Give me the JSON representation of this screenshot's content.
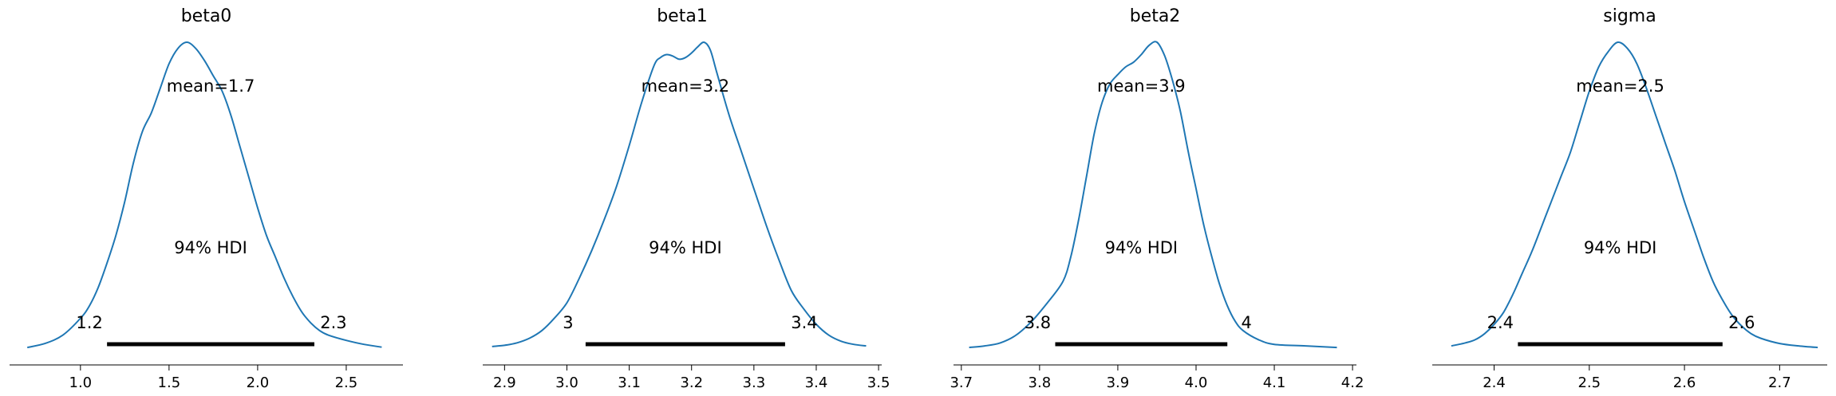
{
  "chart_data": [
    {
      "type": "area",
      "title": "beta0",
      "xlim": [
        0.6,
        2.82
      ],
      "xticks": [
        1.0,
        1.5,
        2.0,
        2.5
      ],
      "xtick_labels": [
        "1.0",
        "1.5",
        "2.0",
        "2.5"
      ],
      "density": {
        "x": [
          0.7,
          0.8,
          0.9,
          1.0,
          1.05,
          1.1,
          1.15,
          1.2,
          1.25,
          1.3,
          1.35,
          1.4,
          1.45,
          1.5,
          1.55,
          1.6,
          1.65,
          1.7,
          1.75,
          1.8,
          1.85,
          1.9,
          1.95,
          2.0,
          2.05,
          2.1,
          2.15,
          2.2,
          2.25,
          2.3,
          2.35,
          2.4,
          2.5,
          2.6,
          2.7
        ],
        "y": [
          0.005,
          0.018,
          0.045,
          0.1,
          0.14,
          0.2,
          0.28,
          0.37,
          0.48,
          0.61,
          0.71,
          0.77,
          0.85,
          0.93,
          0.98,
          1.0,
          0.98,
          0.94,
          0.89,
          0.84,
          0.76,
          0.66,
          0.56,
          0.46,
          0.37,
          0.3,
          0.23,
          0.17,
          0.12,
          0.085,
          0.06,
          0.045,
          0.028,
          0.015,
          0.006
        ]
      },
      "mean_label": "mean=1.7",
      "hdi_label": "94% HDI",
      "hdi": [
        1.15,
        2.32
      ],
      "hdi_low_label": "1.2",
      "hdi_high_label": "2.3"
    },
    {
      "type": "area",
      "title": "beta1",
      "xlim": [
        2.865,
        3.505
      ],
      "xticks": [
        2.9,
        3.0,
        3.1,
        3.2,
        3.3,
        3.4,
        3.5
      ],
      "xtick_labels": [
        "2.9",
        "3.0",
        "3.1",
        "3.2",
        "3.3",
        "3.4",
        "3.5"
      ],
      "density": {
        "x": [
          2.88,
          2.9,
          2.92,
          2.94,
          2.96,
          2.98,
          3.0,
          3.02,
          3.04,
          3.06,
          3.08,
          3.1,
          3.12,
          3.14,
          3.15,
          3.16,
          3.17,
          3.18,
          3.19,
          3.2,
          3.21,
          3.22,
          3.23,
          3.24,
          3.26,
          3.28,
          3.3,
          3.32,
          3.34,
          3.36,
          3.38,
          3.4,
          3.42,
          3.44,
          3.46,
          3.48
        ],
        "y": [
          0.008,
          0.012,
          0.02,
          0.035,
          0.06,
          0.1,
          0.15,
          0.23,
          0.32,
          0.42,
          0.53,
          0.66,
          0.8,
          0.92,
          0.945,
          0.955,
          0.95,
          0.94,
          0.945,
          0.96,
          0.98,
          0.995,
          0.97,
          0.9,
          0.76,
          0.64,
          0.52,
          0.4,
          0.29,
          0.19,
          0.13,
          0.08,
          0.045,
          0.025,
          0.015,
          0.01
        ]
      },
      "mean_label": "mean=3.2",
      "hdi_label": "94% HDI",
      "hdi": [
        3.03,
        3.35
      ],
      "hdi_low_label": "3",
      "hdi_high_label": "3.4"
    },
    {
      "type": "area",
      "title": "beta2",
      "xlim": [
        3.69,
        4.205
      ],
      "xticks": [
        3.7,
        3.8,
        3.9,
        4.0,
        4.1,
        4.2
      ],
      "xtick_labels": [
        "3.7",
        "3.8",
        "3.9",
        "4.0",
        "4.1",
        "4.2"
      ],
      "density": {
        "x": [
          3.71,
          3.73,
          3.75,
          3.77,
          3.79,
          3.81,
          3.83,
          3.84,
          3.85,
          3.86,
          3.87,
          3.88,
          3.89,
          3.9,
          3.91,
          3.92,
          3.93,
          3.94,
          3.95,
          3.96,
          3.97,
          3.98,
          3.99,
          4.0,
          4.01,
          4.02,
          4.03,
          4.04,
          4.05,
          4.06,
          4.08,
          4.1,
          4.14,
          4.18
        ],
        "y": [
          0.005,
          0.01,
          0.02,
          0.045,
          0.09,
          0.15,
          0.22,
          0.3,
          0.42,
          0.56,
          0.7,
          0.8,
          0.86,
          0.89,
          0.915,
          0.93,
          0.955,
          0.985,
          0.995,
          0.95,
          0.87,
          0.77,
          0.64,
          0.52,
          0.4,
          0.3,
          0.21,
          0.14,
          0.09,
          0.06,
          0.03,
          0.015,
          0.01,
          0.005
        ]
      },
      "mean_label": "mean=3.9",
      "hdi_label": "94% HDI",
      "hdi": [
        3.82,
        4.04
      ],
      "hdi_low_label": "3.8",
      "hdi_high_label": "4"
    },
    {
      "type": "area",
      "title": "sigma",
      "xlim": [
        2.335,
        2.75
      ],
      "xticks": [
        2.4,
        2.5,
        2.6,
        2.7
      ],
      "xtick_labels": [
        "2.4",
        "2.5",
        "2.6",
        "2.7"
      ],
      "density": {
        "x": [
          2.355,
          2.37,
          2.38,
          2.39,
          2.4,
          2.41,
          2.42,
          2.43,
          2.44,
          2.45,
          2.46,
          2.47,
          2.48,
          2.49,
          2.5,
          2.51,
          2.52,
          2.53,
          2.54,
          2.55,
          2.56,
          2.57,
          2.58,
          2.59,
          2.6,
          2.61,
          2.62,
          2.63,
          2.64,
          2.65,
          2.66,
          2.67,
          2.68,
          2.7,
          2.72,
          2.74
        ],
        "y": [
          0.01,
          0.02,
          0.03,
          0.05,
          0.08,
          0.12,
          0.18,
          0.25,
          0.32,
          0.4,
          0.48,
          0.56,
          0.64,
          0.74,
          0.84,
          0.92,
          0.97,
          1.0,
          0.98,
          0.93,
          0.85,
          0.76,
          0.67,
          0.58,
          0.48,
          0.39,
          0.3,
          0.22,
          0.16,
          0.11,
          0.075,
          0.05,
          0.035,
          0.018,
          0.01,
          0.005
        ]
      },
      "mean_label": "mean=2.5",
      "hdi_label": "94% HDI",
      "hdi": [
        2.425,
        2.64
      ],
      "hdi_low_label": "2.4",
      "hdi_high_label": "2.6"
    }
  ],
  "colors": {
    "density_line": "#1f77b4",
    "hdi_bar": "#000000",
    "axis": "#000000"
  }
}
